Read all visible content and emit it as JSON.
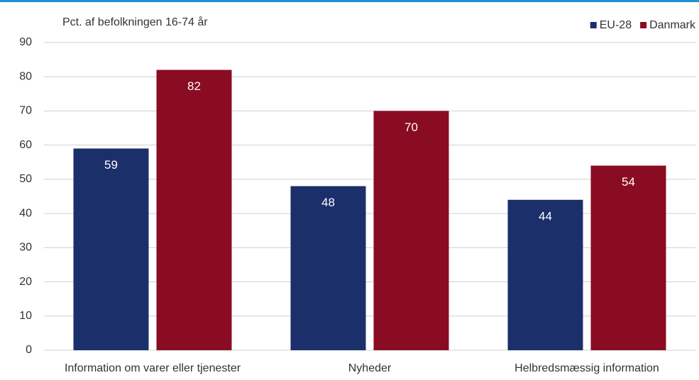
{
  "chart_data": {
    "type": "bar",
    "y_label": "Pct. af befolkningen 16-74 år",
    "categories": [
      "Information om varer eller tjenester",
      "Nyheder",
      "Helbredsmæssig information"
    ],
    "series": [
      {
        "name": "EU-28",
        "color": "#1b2f6b",
        "values": [
          59,
          48,
          44
        ]
      },
      {
        "name": "Danmark",
        "color": "#8a0c22",
        "values": [
          82,
          70,
          54
        ]
      }
    ],
    "ylim": [
      0,
      90
    ],
    "yticks": [
      0,
      10,
      20,
      30,
      40,
      50,
      60,
      70,
      80,
      90
    ],
    "grid": true,
    "legend": "upper right"
  }
}
